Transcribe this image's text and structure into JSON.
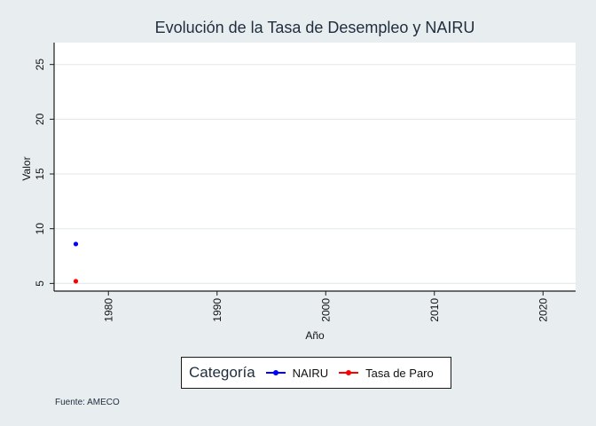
{
  "chart_data": {
    "type": "scatter",
    "title": "Evolución de la Tasa de Desempleo y NAIRU",
    "xlabel": "Año",
    "ylabel": "Valor",
    "xlim": [
      1975,
      2023
    ],
    "ylim": [
      4.3,
      27
    ],
    "xticks": [
      1980,
      1990,
      2000,
      2010,
      2020
    ],
    "yticks": [
      5,
      10,
      15,
      20,
      25
    ],
    "grid": true,
    "legend_position": "bottom",
    "legend_title": "Categoría",
    "series": [
      {
        "name": "NAIRU",
        "color": "#0000ff",
        "points": [
          {
            "x": 1977,
            "y": 8.6
          }
        ]
      },
      {
        "name": "Tasa de Paro",
        "color": "#ff0000",
        "points": [
          {
            "x": 1977,
            "y": 5.2
          }
        ]
      }
    ]
  },
  "source": "Fuente: AMECO"
}
